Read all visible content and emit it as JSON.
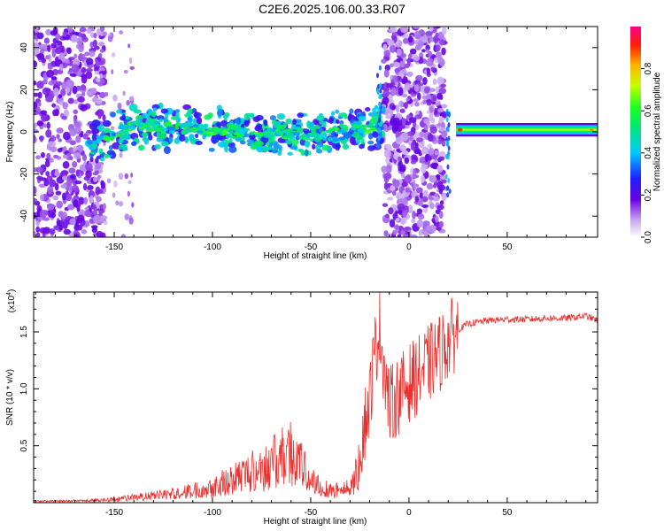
{
  "title": "C2E6.2025.106.00.33.R07",
  "colors": {
    "snr_line": "#e8302e",
    "axes": "#000000",
    "spectrum_background": "#ffffff"
  },
  "chart_data": [
    {
      "type": "heatmap",
      "xlabel": "Height of straight line (km)",
      "ylabel": "Frequency (Hz)",
      "xlim": [
        -191,
        96
      ],
      "ylim": [
        -50,
        50
      ],
      "x_ticks": [
        -150,
        -100,
        -50,
        0,
        50
      ],
      "x_tick_labels": [
        "-150",
        "-100",
        "-50",
        "0",
        "50"
      ],
      "y_ticks": [
        -40,
        -20,
        0,
        20,
        40
      ],
      "y_tick_labels": [
        "-40",
        "-20",
        "0",
        "20",
        "40"
      ],
      "colorbar": {
        "label": "Normalized spectral amplitude",
        "range": [
          0,
          1
        ],
        "ticks": [
          0.0,
          0.2,
          0.4,
          0.6,
          0.8
        ],
        "tick_labels": [
          "0.0",
          "0.2",
          "0.4",
          "0.6",
          "0.8"
        ],
        "colormap": "rainbow"
      },
      "dominant_ridge": [
        {
          "x": -160,
          "y": -5
        },
        {
          "x": -140,
          "y": 3
        },
        {
          "x": -120,
          "y": 2
        },
        {
          "x": -100,
          "y": 1
        },
        {
          "x": -80,
          "y": 0
        },
        {
          "x": -60,
          "y": -1
        },
        {
          "x": -50,
          "y": -2
        },
        {
          "x": -40,
          "y": 0
        },
        {
          "x": -30,
          "y": 2
        },
        {
          "x": -20,
          "y": 2
        },
        {
          "x": -15,
          "y": 1
        },
        {
          "x": 25,
          "y": 1
        },
        {
          "x": 50,
          "y": 1
        },
        {
          "x": 75,
          "y": 1
        },
        {
          "x": 95,
          "y": 1
        }
      ]
    },
    {
      "type": "line",
      "xlabel": "Height of straight line (km)",
      "ylabel": "SNR (10 * v/v)",
      "y_scale_label": "(x10",
      "y_scale_exponent": "4",
      "y_scale_close": ")",
      "xlim": [
        -191,
        96
      ],
      "ylim": [
        0,
        1.85
      ],
      "x_ticks": [
        -150,
        -100,
        -50,
        0,
        50
      ],
      "x_tick_labels": [
        "-150",
        "-100",
        "-50",
        "0",
        "50"
      ],
      "y_ticks": [
        0.5,
        1.0,
        1.5
      ],
      "y_tick_labels": [
        "0.5",
        "1.0",
        "1.5"
      ],
      "series": [
        {
          "x": [
            -191,
            -175,
            -160,
            -150,
            -140,
            -130,
            -120,
            -110,
            -100,
            -90,
            -80,
            -70,
            -65,
            -60,
            -55,
            -50,
            -45,
            -40,
            -35,
            -30,
            -25,
            -20,
            -18,
            -15,
            -12,
            -10,
            -5,
            0,
            5,
            10,
            15,
            20,
            25,
            30,
            40,
            50,
            60,
            70,
            80,
            90,
            96
          ],
          "y": [
            0.02,
            0.02,
            0.03,
            0.05,
            0.07,
            0.09,
            0.12,
            0.16,
            0.22,
            0.32,
            0.42,
            0.52,
            0.6,
            0.7,
            0.5,
            0.3,
            0.22,
            0.18,
            0.16,
            0.2,
            0.5,
            0.9,
            1.25,
            1.55,
            1.1,
            0.85,
            0.95,
            1.05,
            1.12,
            1.22,
            1.3,
            1.42,
            1.52,
            1.57,
            1.6,
            1.61,
            1.61,
            1.62,
            1.62,
            1.64,
            1.6
          ]
        }
      ]
    }
  ]
}
